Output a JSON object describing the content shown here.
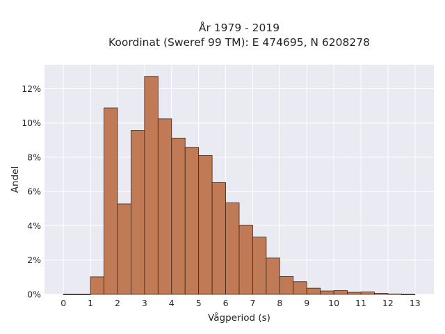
{
  "chart_data": {
    "type": "bar",
    "title": "År 1979 - 2019",
    "subtitle": "Koordinat (Sweref 99 TM): E 474695, N 6208278",
    "xlabel": "Vågperiod (s)",
    "ylabel": "Andel",
    "bin_width": 0.5,
    "bin_starts": [
      0,
      0.5,
      1,
      1.5,
      2,
      2.5,
      3,
      3.5,
      4,
      4.5,
      5,
      5.5,
      6,
      6.5,
      7,
      7.5,
      8,
      8.5,
      9,
      9.5,
      10,
      10.5,
      11,
      11.5,
      12,
      12.5
    ],
    "values": [
      0.0,
      0.0,
      1.02,
      10.88,
      5.28,
      9.56,
      12.72,
      10.24,
      9.12,
      8.58,
      8.1,
      6.52,
      5.34,
      4.04,
      3.34,
      2.12,
      1.04,
      0.74,
      0.36,
      0.2,
      0.22,
      0.12,
      0.14,
      0.06,
      0.02,
      0.0
    ],
    "xticks": [
      0,
      1,
      2,
      3,
      4,
      5,
      6,
      7,
      8,
      9,
      10,
      11,
      12,
      13
    ],
    "yticks": [
      0,
      2,
      4,
      6,
      8,
      10,
      12
    ],
    "ytick_labels": [
      "0%",
      "2%",
      "4%",
      "6%",
      "8%",
      "10%",
      "12%"
    ],
    "xlim": [
      -0.7,
      13.7
    ],
    "ylim": [
      0,
      13.4
    ],
    "grid": true,
    "bar_color": "#c07a55",
    "edge_color": "#3b2418",
    "background": "#eaeaf2"
  }
}
